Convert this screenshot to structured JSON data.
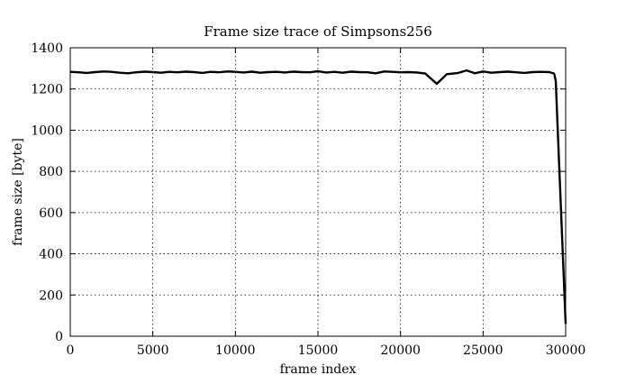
{
  "chart_data": {
    "type": "line",
    "title": "Frame size trace of Simpsons256",
    "xlabel": "frame index",
    "ylabel": "frame size [byte]",
    "xlim": [
      0,
      30000
    ],
    "ylim": [
      0,
      1400
    ],
    "xticks": [
      0,
      5000,
      10000,
      15000,
      20000,
      25000,
      30000
    ],
    "yticks": [
      0,
      200,
      400,
      600,
      800,
      1000,
      1200,
      1400
    ],
    "grid": true,
    "legend": "none",
    "series": [
      {
        "color": "#000000",
        "x": [
          0,
          500,
          1000,
          1500,
          2000,
          2500,
          3000,
          3500,
          4000,
          4500,
          5000,
          5500,
          6000,
          6500,
          7000,
          7500,
          8000,
          8500,
          9000,
          9500,
          10000,
          10500,
          11000,
          11500,
          12000,
          12500,
          13000,
          13500,
          14000,
          14500,
          15000,
          15500,
          16000,
          16500,
          17000,
          17500,
          18000,
          18500,
          19000,
          19500,
          20000,
          20500,
          21000,
          21500,
          22200,
          22800,
          23500,
          24000,
          24500,
          25000,
          25500,
          26000,
          26500,
          27000,
          27500,
          28000,
          28500,
          29000,
          29300,
          29400,
          30000
        ],
        "y": [
          1283,
          1281,
          1278,
          1282,
          1285,
          1283,
          1279,
          1276,
          1281,
          1284,
          1282,
          1279,
          1283,
          1281,
          1284,
          1282,
          1278,
          1283,
          1281,
          1285,
          1283,
          1280,
          1284,
          1279,
          1282,
          1283,
          1280,
          1284,
          1282,
          1281,
          1286,
          1280,
          1283,
          1279,
          1284,
          1282,
          1281,
          1276,
          1285,
          1283,
          1281,
          1282,
          1280,
          1275,
          1225,
          1272,
          1278,
          1290,
          1276,
          1285,
          1279,
          1282,
          1284,
          1281,
          1278,
          1282,
          1283,
          1282,
          1275,
          1240,
          60
        ]
      }
    ]
  }
}
